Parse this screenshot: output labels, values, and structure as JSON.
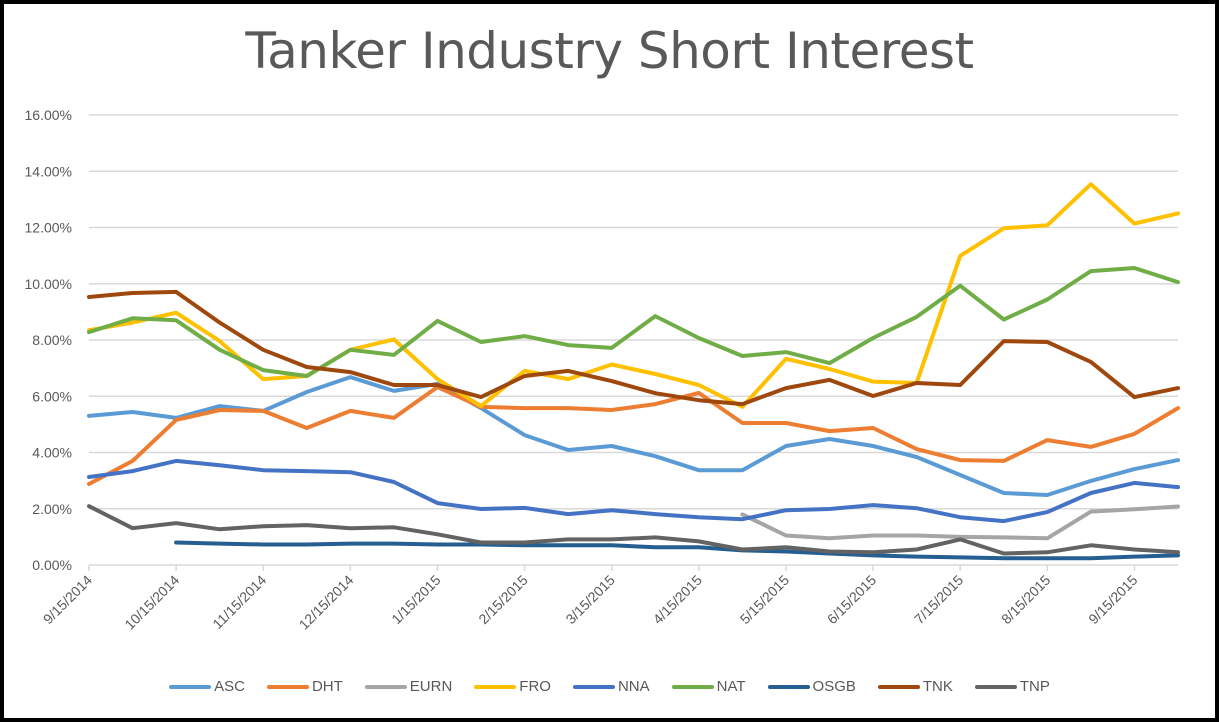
{
  "chart_data": {
    "type": "line",
    "title": "Tanker Industry Short Interest",
    "xlabel": "",
    "ylabel": "",
    "ylim": [
      0,
      16
    ],
    "y_ticks": [
      "0.00%",
      "2.00%",
      "4.00%",
      "6.00%",
      "8.00%",
      "10.00%",
      "12.00%",
      "14.00%",
      "16.00%"
    ],
    "x_tick_labels": [
      "9/15/2014",
      "10/15/2014",
      "11/15/2014",
      "12/15/2014",
      "1/15/2015",
      "2/15/2015",
      "3/15/2015",
      "4/15/2015",
      "5/15/2015",
      "6/15/2015",
      "7/15/2015",
      "8/15/2015",
      "9/15/2015"
    ],
    "x": [
      "9/15/2014",
      "9/30/2014",
      "10/15/2014",
      "10/31/2014",
      "11/15/2014",
      "11/28/2014",
      "12/15/2014",
      "12/31/2014",
      "1/15/2015",
      "1/30/2015",
      "2/13/2015",
      "2/27/2015",
      "3/13/2015",
      "3/31/2015",
      "4/15/2015",
      "4/30/2015",
      "5/15/2015",
      "5/29/2015",
      "6/15/2015",
      "6/30/2015",
      "7/15/2015",
      "7/31/2015",
      "8/14/2015",
      "8/31/2015",
      "9/15/2015",
      "9/30/2015"
    ],
    "grid": true,
    "legend_position": "bottom",
    "series": [
      {
        "name": "ASC",
        "color": "#5B9BD5",
        "values": [
          5.3,
          5.44,
          5.23,
          5.65,
          5.48,
          6.15,
          6.68,
          6.19,
          6.44,
          5.58,
          4.62,
          4.09,
          4.23,
          3.87,
          3.37,
          3.37,
          4.23,
          4.48,
          4.23,
          3.84,
          3.2,
          2.56,
          2.49,
          2.99,
          3.41,
          3.73
        ]
      },
      {
        "name": "DHT",
        "color": "#ED7D31",
        "values": [
          2.88,
          3.7,
          5.16,
          5.51,
          5.48,
          4.87,
          5.48,
          5.23,
          6.33,
          5.62,
          5.58,
          5.58,
          5.51,
          5.72,
          6.12,
          5.05,
          5.05,
          4.76,
          4.87,
          4.12,
          3.73,
          3.7,
          4.44,
          4.2,
          4.66,
          5.58
        ]
      },
      {
        "name": "EURN",
        "color": "#A5A5A5",
        "values": [
          null,
          null,
          null,
          null,
          null,
          null,
          null,
          null,
          null,
          null,
          null,
          null,
          null,
          null,
          null,
          1.8,
          1.05,
          0.95,
          1.05,
          1.05,
          1.0,
          0.98,
          0.95,
          1.9,
          1.98,
          2.08
        ]
      },
      {
        "name": "FRO",
        "color": "#FFC000",
        "values": [
          8.35,
          8.62,
          8.97,
          7.96,
          6.61,
          6.72,
          7.65,
          8.02,
          6.61,
          5.65,
          6.9,
          6.61,
          7.13,
          6.79,
          6.4,
          5.62,
          7.33,
          6.97,
          6.52,
          6.47,
          10.99,
          11.97,
          12.08,
          13.54,
          12.14,
          12.5
        ]
      },
      {
        "name": "NNA",
        "color": "#4472C4",
        "values": [
          3.13,
          3.34,
          3.7,
          3.55,
          3.37,
          3.34,
          3.3,
          2.95,
          2.2,
          1.99,
          2.03,
          1.81,
          1.95,
          1.81,
          1.7,
          1.63,
          1.95,
          1.99,
          2.13,
          2.02,
          1.7,
          1.56,
          1.88,
          2.56,
          2.92,
          2.77
        ]
      },
      {
        "name": "NAT",
        "color": "#70AD47",
        "values": [
          8.28,
          8.77,
          8.7,
          7.65,
          6.93,
          6.72,
          7.65,
          7.47,
          8.68,
          7.93,
          8.14,
          7.82,
          7.72,
          8.85,
          8.07,
          7.43,
          7.57,
          7.18,
          8.07,
          8.82,
          9.93,
          8.73,
          9.44,
          10.45,
          10.56,
          10.06
        ]
      },
      {
        "name": "OSGB",
        "color": "#255E91",
        "values": [
          null,
          null,
          0.8,
          0.76,
          0.73,
          0.73,
          0.76,
          0.76,
          0.73,
          0.73,
          0.7,
          0.7,
          0.7,
          0.63,
          0.63,
          0.52,
          0.48,
          0.41,
          0.34,
          0.3,
          0.27,
          0.24,
          0.24,
          0.24,
          0.3,
          0.34
        ]
      },
      {
        "name": "TNK",
        "color": "#9E480E",
        "values": [
          9.53,
          9.67,
          9.71,
          8.62,
          7.65,
          7.04,
          6.86,
          6.4,
          6.4,
          5.97,
          6.72,
          6.9,
          6.54,
          6.11,
          5.86,
          5.72,
          6.29,
          6.58,
          6.01,
          6.47,
          6.4,
          7.96,
          7.93,
          7.22,
          5.97,
          6.29
        ]
      },
      {
        "name": "TNP",
        "color": "#636363",
        "values": [
          2.09,
          1.31,
          1.49,
          1.27,
          1.38,
          1.42,
          1.31,
          1.34,
          1.09,
          0.8,
          0.8,
          0.91,
          0.91,
          0.98,
          0.84,
          0.55,
          0.63,
          0.48,
          0.45,
          0.55,
          0.91,
          0.41,
          0.45,
          0.7,
          0.55,
          0.45
        ]
      }
    ]
  }
}
